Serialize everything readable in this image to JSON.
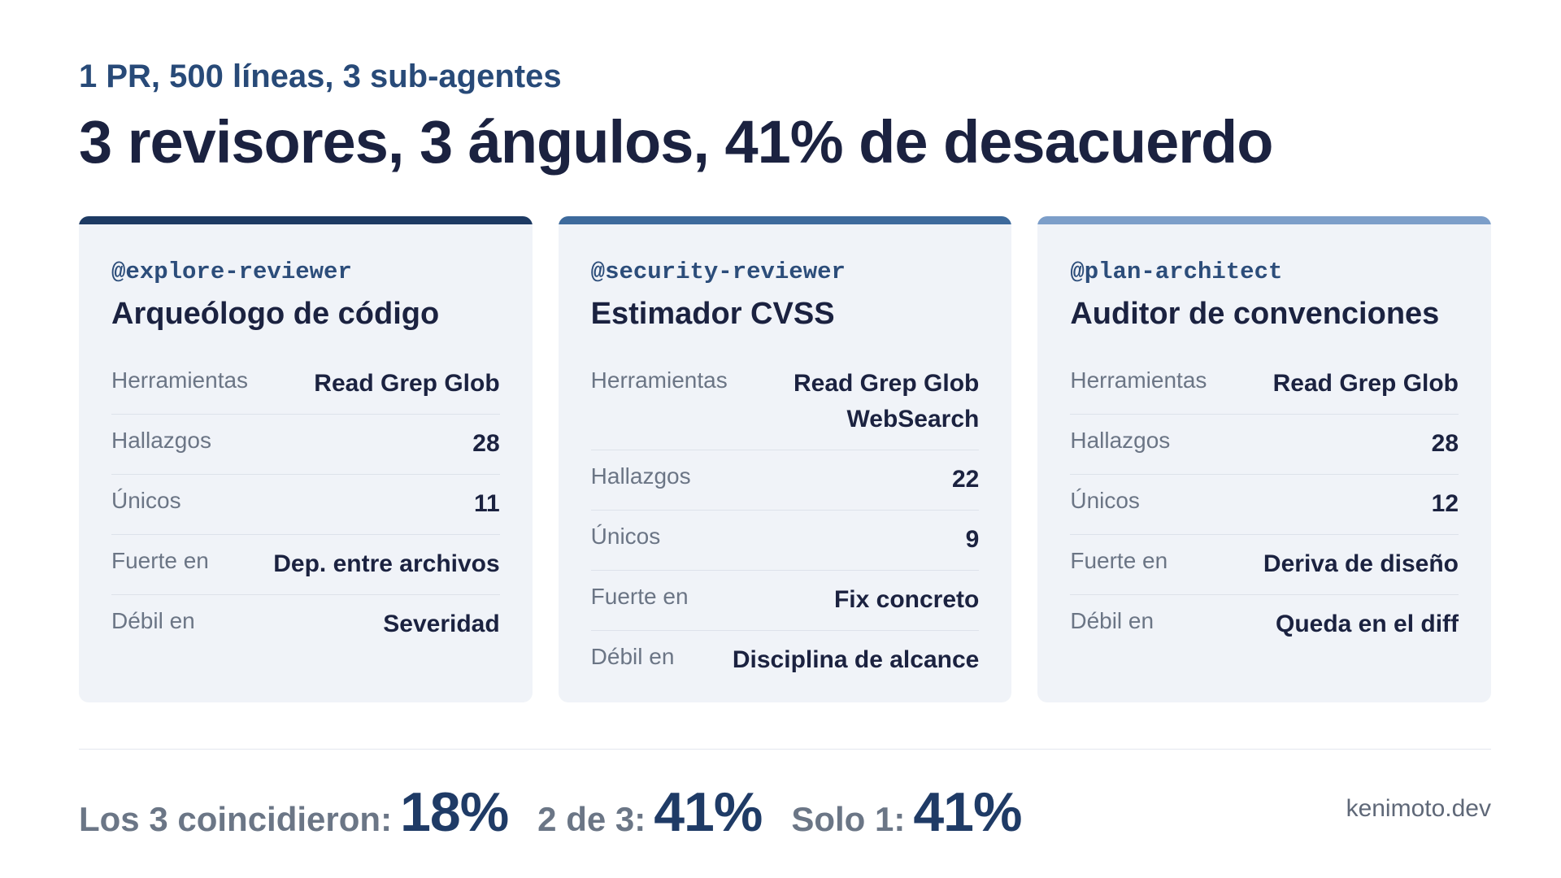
{
  "header": {
    "subtitle": "1 PR, 500 líneas, 3 sub-agentes",
    "title": "3 revisores, 3 ángulos, 41% de desacuerdo"
  },
  "labels": {
    "tools": "Herramientas",
    "findings": "Hallazgos",
    "unique": "Únicos",
    "strong": "Fuerte en",
    "weak": "Débil en"
  },
  "cards": [
    {
      "accent": "#1d3a63",
      "handle": "@explore-reviewer",
      "role": "Arqueólogo de código",
      "tools": "Read Grep Glob",
      "findings": "28",
      "unique": "11",
      "strong": "Dep. entre archivos",
      "weak": "Severidad"
    },
    {
      "accent": "#3d6a9c",
      "handle": "@security-reviewer",
      "role": "Estimador CVSS",
      "tools": "Read Grep Glob WebSearch",
      "findings": "22",
      "unique": "9",
      "strong": "Fix concreto",
      "weak": "Disciplina de alcance"
    },
    {
      "accent": "#7c9ec9",
      "handle": "@plan-architect",
      "role": "Auditor de convenciones",
      "tools": "Read Grep Glob",
      "findings": "28",
      "unique": "12",
      "strong": "Deriva de diseño",
      "weak": "Queda en el diff"
    }
  ],
  "stats": [
    {
      "label": "Los 3 coincidieron:",
      "value": "18%"
    },
    {
      "label": "2 de 3:",
      "value": "41%"
    },
    {
      "label": "Solo 1:",
      "value": "41%"
    }
  ],
  "credit": "kenimoto.dev"
}
